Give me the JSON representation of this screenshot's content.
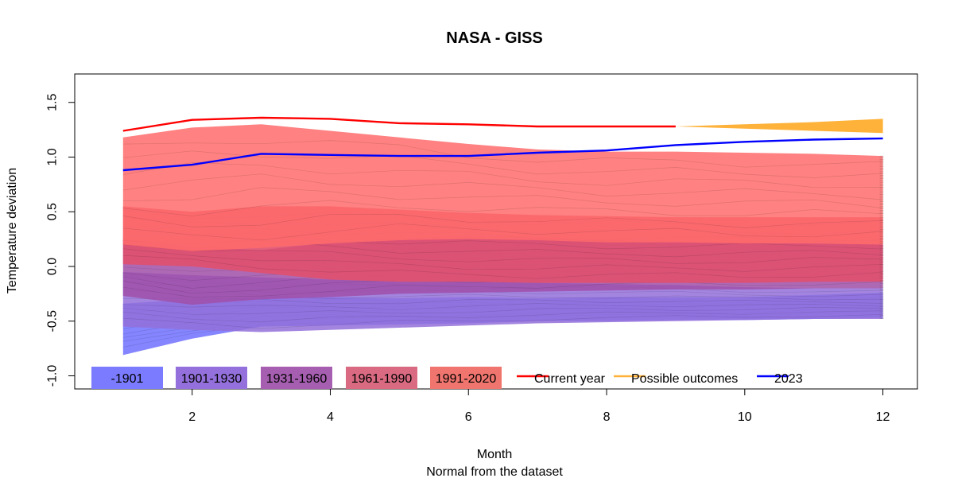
{
  "chart_data": {
    "type": "area",
    "title": "NASA - GISS",
    "xlabel": "Month",
    "xlabel_sub": "Normal from the dataset",
    "ylabel": "Temperature deviation",
    "xlim": [
      0.3,
      12.5
    ],
    "ylim": [
      -1.12,
      1.76
    ],
    "x_ticks": [
      2,
      4,
      6,
      8,
      10,
      12
    ],
    "y_ticks": [
      -1.0,
      -0.5,
      0.0,
      0.5,
      1.0,
      1.5
    ],
    "y_tick_labels": [
      "-1.0",
      "-0.5",
      "0.0",
      "0.5",
      "1.0",
      "1.5"
    ],
    "bands": [
      {
        "name": "-1901",
        "color": "#7B7BFF",
        "opacity": 0.92,
        "x": [
          1,
          2,
          3,
          4,
          5,
          6,
          7,
          8,
          9,
          10,
          11,
          12
        ],
        "upper": [
          -0.34,
          -0.3,
          -0.28,
          -0.28,
          -0.29,
          -0.28,
          -0.29,
          -0.28,
          -0.28,
          -0.28,
          -0.26,
          -0.24
        ],
        "lower": [
          -0.81,
          -0.66,
          -0.55,
          -0.54,
          -0.53,
          -0.52,
          -0.5,
          -0.5,
          -0.49,
          -0.49,
          -0.48,
          -0.47
        ]
      },
      {
        "name": "1901-1930",
        "color": "#9370DB",
        "opacity": 0.85,
        "x": [
          1,
          2,
          3,
          4,
          5,
          6,
          7,
          8,
          9,
          10,
          11,
          12
        ],
        "upper": [
          -0.05,
          -0.08,
          -0.1,
          -0.12,
          -0.14,
          -0.14,
          -0.15,
          -0.16,
          -0.17,
          -0.19,
          -0.2,
          -0.2
        ],
        "lower": [
          -0.55,
          -0.58,
          -0.6,
          -0.58,
          -0.56,
          -0.54,
          -0.52,
          -0.51,
          -0.5,
          -0.49,
          -0.48,
          -0.48
        ]
      },
      {
        "name": "1931-1960",
        "color": "#A04FA8",
        "opacity": 0.85,
        "x": [
          1,
          2,
          3,
          4,
          5,
          6,
          7,
          8,
          9,
          10,
          11,
          12
        ],
        "upper": [
          0.25,
          0.18,
          0.15,
          0.22,
          0.25,
          0.28,
          0.27,
          0.25,
          0.23,
          0.22,
          0.21,
          0.2
        ],
        "lower": [
          -0.27,
          -0.35,
          -0.3,
          -0.28,
          -0.25,
          -0.24,
          -0.23,
          -0.22,
          -0.21,
          -0.21,
          -0.2,
          -0.2
        ]
      },
      {
        "name": "1961-1990",
        "color": "#E0506E",
        "opacity": 0.9,
        "x": [
          1,
          2,
          3,
          4,
          5,
          6,
          7,
          8,
          9,
          10,
          11,
          12
        ],
        "upper": [
          0.55,
          0.5,
          0.55,
          0.55,
          0.52,
          0.49,
          0.47,
          0.46,
          0.45,
          0.45,
          0.45,
          0.45
        ],
        "lower": [
          0.02,
          0.0,
          -0.06,
          -0.12,
          -0.14,
          -0.14,
          -0.15,
          -0.15,
          -0.15,
          -0.15,
          -0.14,
          -0.14
        ]
      },
      {
        "name": "1991-2020",
        "color": "#FF6B6B",
        "opacity": 0.85,
        "x": [
          1,
          2,
          3,
          4,
          5,
          6,
          7,
          8,
          9,
          10,
          11,
          12
        ],
        "upper": [
          1.18,
          1.27,
          1.3,
          1.24,
          1.18,
          1.12,
          1.07,
          1.05,
          1.05,
          1.04,
          1.03,
          1.01
        ],
        "lower": [
          0.2,
          0.14,
          0.17,
          0.21,
          0.24,
          0.25,
          0.24,
          0.22,
          0.22,
          0.21,
          0.21,
          0.2
        ]
      }
    ],
    "possible_outcomes": {
      "name": "Possible outcomes",
      "color": "#FFB23A",
      "x": [
        9,
        10,
        11,
        12
      ],
      "upper": [
        1.28,
        1.3,
        1.32,
        1.35
      ],
      "lower": [
        1.28,
        1.26,
        1.24,
        1.22
      ]
    },
    "series": [
      {
        "name": "Current year",
        "color": "#FF0000",
        "x": [
          1,
          2,
          3,
          4,
          5,
          6,
          7,
          8,
          9
        ],
        "values": [
          1.24,
          1.34,
          1.36,
          1.35,
          1.31,
          1.3,
          1.28,
          1.28,
          1.28
        ]
      },
      {
        "name": "2023",
        "color": "#0000FF",
        "x": [
          1,
          2,
          3,
          4,
          5,
          6,
          7,
          8,
          9,
          10,
          11,
          12
        ],
        "values": [
          0.88,
          0.93,
          1.03,
          1.02,
          1.01,
          1.01,
          1.04,
          1.06,
          1.11,
          1.14,
          1.16,
          1.17
        ]
      }
    ],
    "legend": {
      "placement": "bottom-left",
      "items": [
        {
          "label": "-1901",
          "kind": "box",
          "color": "#7B7BFF"
        },
        {
          "label": "1901-1930",
          "kind": "box",
          "color": "#9370DB"
        },
        {
          "label": "1931-1960",
          "kind": "box",
          "color": "#A65FB0"
        },
        {
          "label": "1961-1990",
          "kind": "box",
          "color": "#D96A82"
        },
        {
          "label": "1991-2020",
          "kind": "box",
          "color": "#F0756E"
        },
        {
          "label": "Current year",
          "kind": "line",
          "color": "#FF0000"
        },
        {
          "label": "Possible outcomes",
          "kind": "line",
          "color": "#FFB23A"
        },
        {
          "label": "2023",
          "kind": "line",
          "color": "#0000FF"
        }
      ]
    }
  }
}
